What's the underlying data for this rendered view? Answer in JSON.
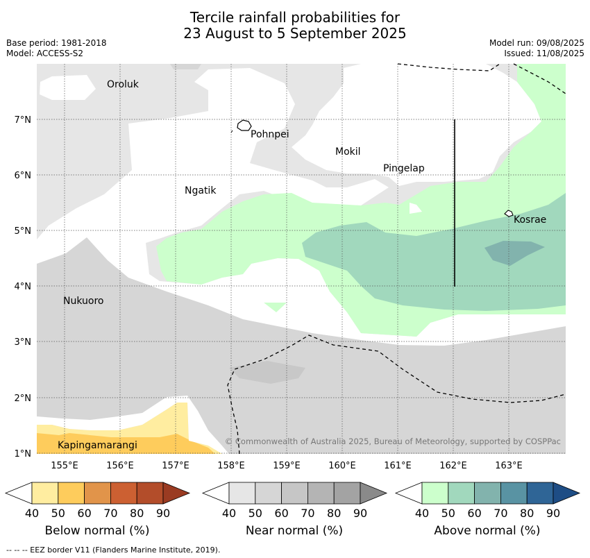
{
  "title_line1": "Tercile rainfall probabilities for",
  "title_line2": "23 August to 5 September 2025",
  "base_period": "Base period: 1981-2018",
  "model": "Model: ACCESS-S2",
  "model_run": "Model run: 09/08/2025",
  "issued": "Issued: 11/08/2025",
  "copyright": "© Commonwealth of Australia 2025, Bureau of Meteorology, supported by COSPPac",
  "footer_note": "--  --  -- EEZ border V11 (Flanders Marine Institute, 2019).",
  "map": {
    "lon_ticks": [
      "155°E",
      "156°E",
      "157°E",
      "158°E",
      "159°E",
      "160°E",
      "161°E",
      "162°E",
      "163°E"
    ],
    "lat_ticks": [
      "1°N",
      "2°N",
      "3°N",
      "4°N",
      "5°N",
      "6°N",
      "7°N"
    ],
    "places": [
      "Oroluk",
      "Pohnpei",
      "Mokil",
      "Pingelap",
      "Ngatik",
      "Kosrae",
      "Nukuoro",
      "Kapingamarangi"
    ]
  },
  "colorbars": [
    {
      "label": "Below normal (%)",
      "ticks": [
        "40",
        "50",
        "60",
        "70",
        "80",
        "90"
      ],
      "colors": [
        "#ffffff",
        "#ffeda0",
        "#fecc5c",
        "#e1944a",
        "#cc6032",
        "#b34d2a",
        "#9a3b22"
      ]
    },
    {
      "label": "Near normal (%)",
      "ticks": [
        "40",
        "50",
        "60",
        "70",
        "80",
        "90"
      ],
      "colors": [
        "#ffffff",
        "#e6e6e6",
        "#d6d6d6",
        "#c6c6c6",
        "#b4b4b4",
        "#a3a3a3",
        "#8a8a8a"
      ]
    },
    {
      "label": "Above normal (%)",
      "ticks": [
        "40",
        "50",
        "60",
        "70",
        "80",
        "90"
      ],
      "colors": [
        "#ffffff",
        "#ccffcc",
        "#a1d8bd",
        "#82b3ad",
        "#5993a3",
        "#2f6596",
        "#1e4d85"
      ]
    }
  ]
}
